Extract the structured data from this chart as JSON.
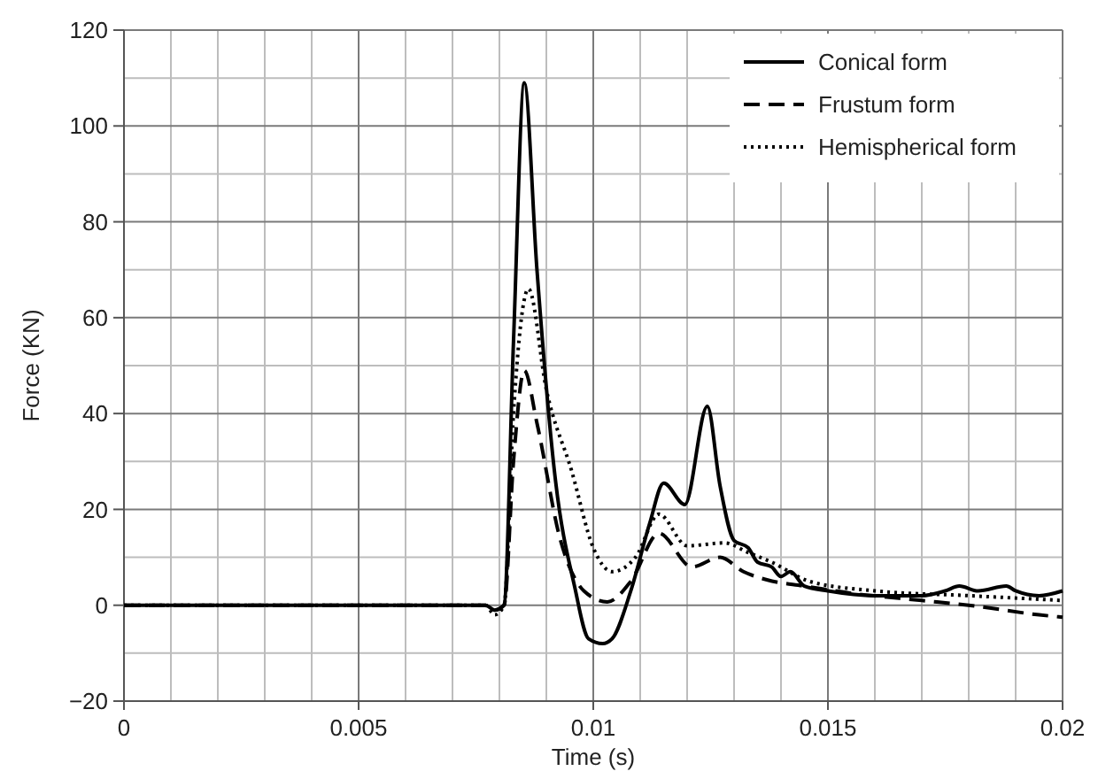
{
  "chart_data": {
    "type": "line",
    "xlabel": "Time (s)",
    "ylabel": "Force (KN)",
    "xlim": [
      0,
      0.02
    ],
    "ylim": [
      -20,
      120
    ],
    "xticks": [
      0,
      0.005,
      0.01,
      0.015,
      0.02
    ],
    "yticks": [
      {
        "value": -20,
        "label": "−20"
      },
      0,
      20,
      40,
      60,
      80,
      100,
      120
    ],
    "grid": true,
    "legend": "top right",
    "marker": "none",
    "series": [
      {
        "name": "Conical form",
        "color": "#000000",
        "line_style": "solid",
        "x": [
          0,
          0.0077,
          0.0079,
          0.0081,
          0.0083,
          0.00853,
          0.0088,
          0.0092,
          0.0096,
          0.0099,
          0.0102,
          0.0104,
          0.0108,
          0.0112,
          0.0115,
          0.01195,
          0.01243,
          0.0127,
          0.013,
          0.0133,
          0.0135,
          0.0138,
          0.014,
          0.0142,
          0.0145,
          0.015,
          0.016,
          0.017,
          0.0175,
          0.0178,
          0.0182,
          0.0188,
          0.019,
          0.0195,
          0.02
        ],
        "values": [
          0,
          0,
          -1,
          0,
          55,
          109,
          70,
          25.6,
          4,
          -7,
          -8,
          -7,
          3,
          17,
          25.5,
          21,
          41.5,
          25,
          13.5,
          12,
          9,
          8,
          6,
          7,
          4,
          3,
          2,
          2,
          3,
          4,
          3,
          4,
          3,
          2,
          3
        ]
      },
      {
        "name": "Frustum form",
        "color": "#000000",
        "line_style": "dashed",
        "x": [
          0,
          0.0077,
          0.0079,
          0.0081,
          0.0083,
          0.00853,
          0.0088,
          0.0093,
          0.0098,
          0.0103,
          0.0108,
          0.0114,
          0.0121,
          0.0127,
          0.0132,
          0.0137,
          0.0145,
          0.0155,
          0.017,
          0.018,
          0.0195,
          0.02
        ],
        "values": [
          0,
          0,
          -1,
          0,
          30,
          49,
          38,
          13.6,
          3,
          0.7,
          5,
          15,
          8,
          10,
          7,
          5.3,
          4,
          2.5,
          1,
          0,
          -2,
          -2.5
        ]
      },
      {
        "name": "Hemispherical form",
        "color": "#000000",
        "line_style": "dotted",
        "x": [
          0,
          0.0077,
          0.0079,
          0.0081,
          0.0083,
          0.00862,
          0.009,
          0.00954,
          0.01,
          0.0104,
          0.0109,
          0.0114,
          0.012,
          0.0128,
          0.0133,
          0.0138,
          0.0146,
          0.016,
          0.018,
          0.02
        ],
        "values": [
          0,
          0,
          -2,
          0,
          40,
          66,
          45,
          28,
          12,
          7,
          10,
          19,
          12.4,
          13,
          11,
          9,
          5,
          3,
          2,
          1
        ]
      }
    ]
  }
}
